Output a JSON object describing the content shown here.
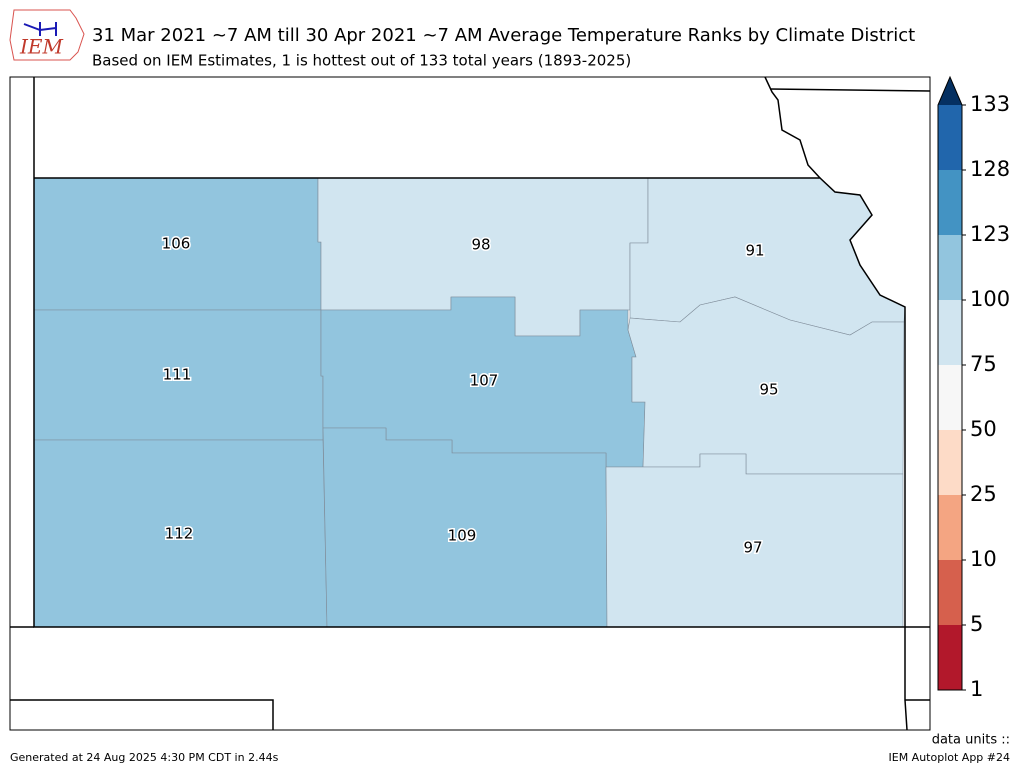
{
  "logo": "IEM",
  "header": {
    "title": "31 Mar 2021 ~7 AM till 30 Apr 2021 ~7 AM Average Temperature Ranks by Climate District",
    "subtitle": "Based on IEM Estimates, 1 is hottest out of 133 total years (1893-2025)"
  },
  "district_ranks": [
    106,
    98,
    91,
    111,
    107,
    95,
    112,
    109,
    97
  ],
  "colorbar": {
    "ticks": [
      1,
      5,
      10,
      25,
      50,
      75,
      100,
      123,
      128,
      133
    ],
    "colors": [
      "#b2182b",
      "#d6604d",
      "#f4a582",
      "#fddbc7",
      "#f7f7f7",
      "#d1e5f0",
      "#92c5de",
      "#4393c3",
      "#2166ac"
    ],
    "extend_color": "#053061"
  },
  "footer": {
    "generated": "Generated at 24 Aug 2025 4:30 PM CDT in 2.44s",
    "units": "data units ::",
    "app": "IEM Autoplot App #24"
  }
}
